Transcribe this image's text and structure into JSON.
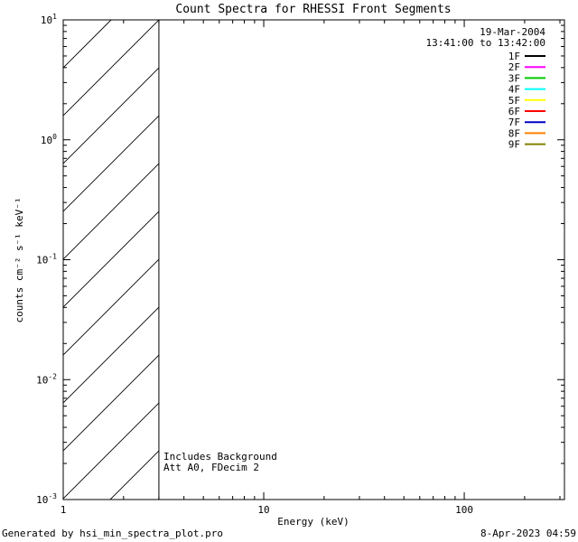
{
  "chart_data": {
    "type": "line",
    "title": "Count Spectra for RHESSI Front Segments",
    "xlabel": "Energy (keV)",
    "ylabel": "counts cm⁻² s⁻¹ keV⁻¹",
    "x_scale": "log",
    "y_scale": "log",
    "xlim": [
      1,
      316
    ],
    "ylim": [
      0.001,
      10
    ],
    "x_major_ticks": [
      1,
      10,
      100
    ],
    "x_tick_labels": [
      "1",
      "10",
      "100"
    ],
    "y_major_tick_exponents": [
      -3,
      -2,
      -1,
      0,
      1
    ],
    "grid": false,
    "legend": {
      "position": "top-right-inside",
      "date": "19-Mar-2004",
      "time_range": "13:41:00 to 13:42:00"
    },
    "series": [
      {
        "name": "1F",
        "color": "#000000",
        "values": []
      },
      {
        "name": "2F",
        "color": "#FF00FF",
        "values": []
      },
      {
        "name": "3F",
        "color": "#00C800",
        "values": []
      },
      {
        "name": "4F",
        "color": "#00FFFF",
        "values": []
      },
      {
        "name": "5F",
        "color": "#FFFF00",
        "values": []
      },
      {
        "name": "6F",
        "color": "#FF0000",
        "values": []
      },
      {
        "name": "7F",
        "color": "#0000C8",
        "values": []
      },
      {
        "name": "8F",
        "color": "#FF8000",
        "values": []
      },
      {
        "name": "9F",
        "color": "#808000",
        "values": []
      }
    ],
    "hatched_region": {
      "x_start": 1,
      "x_end": 3,
      "style": "diagonal-hatch"
    },
    "annotations": [
      "Includes Background",
      "Att A0, FDecim 2"
    ]
  },
  "footer": {
    "left": "Generated by hsi_min_spectra_plot.pro",
    "right": "8-Apr-2023 04:59"
  }
}
